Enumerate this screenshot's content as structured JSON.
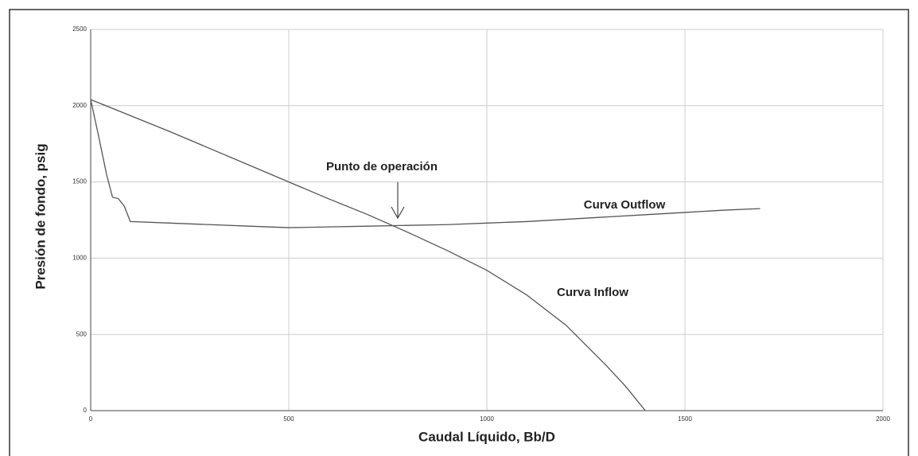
{
  "chart_data": {
    "type": "line",
    "xlabel": "Caudal Líquido, Bb/D",
    "ylabel": "Presión de fondo, psig",
    "annotations": [
      "Punto de operación",
      "Curva Outflow",
      "Curva Inflow"
    ],
    "xlim": [
      0,
      2000
    ],
    "xticks": [
      0,
      500,
      1000,
      1500,
      2000
    ],
    "ylim": [
      0,
      2500
    ],
    "yticks": [
      0,
      500,
      1000,
      1500,
      2000,
      2500
    ],
    "grid": true,
    "series": [
      {
        "name": "Curva Inflow",
        "color": "#555555",
        "x": [
          0,
          100,
          200,
          300,
          400,
          500,
          600,
          700,
          800,
          900,
          1000,
          1100,
          1200,
          1300,
          1350,
          1400
        ],
        "values": [
          2040,
          1935,
          1830,
          1720,
          1610,
          1500,
          1390,
          1285,
          1170,
          1050,
          920,
          760,
          560,
          300,
          160,
          0
        ]
      },
      {
        "name": "Curva Outflow",
        "color": "#555555",
        "x": [
          0,
          20,
          40,
          55,
          70,
          85,
          100,
          200,
          300,
          400,
          500,
          600,
          700,
          800,
          900,
          1000,
          1100,
          1200,
          1300,
          1400,
          1500,
          1600,
          1690
        ],
        "values": [
          2040,
          1800,
          1550,
          1400,
          1390,
          1340,
          1240,
          1230,
          1220,
          1210,
          1200,
          1205,
          1210,
          1215,
          1220,
          1230,
          1240,
          1255,
          1270,
          1285,
          1300,
          1315,
          1325
        ]
      }
    ]
  }
}
